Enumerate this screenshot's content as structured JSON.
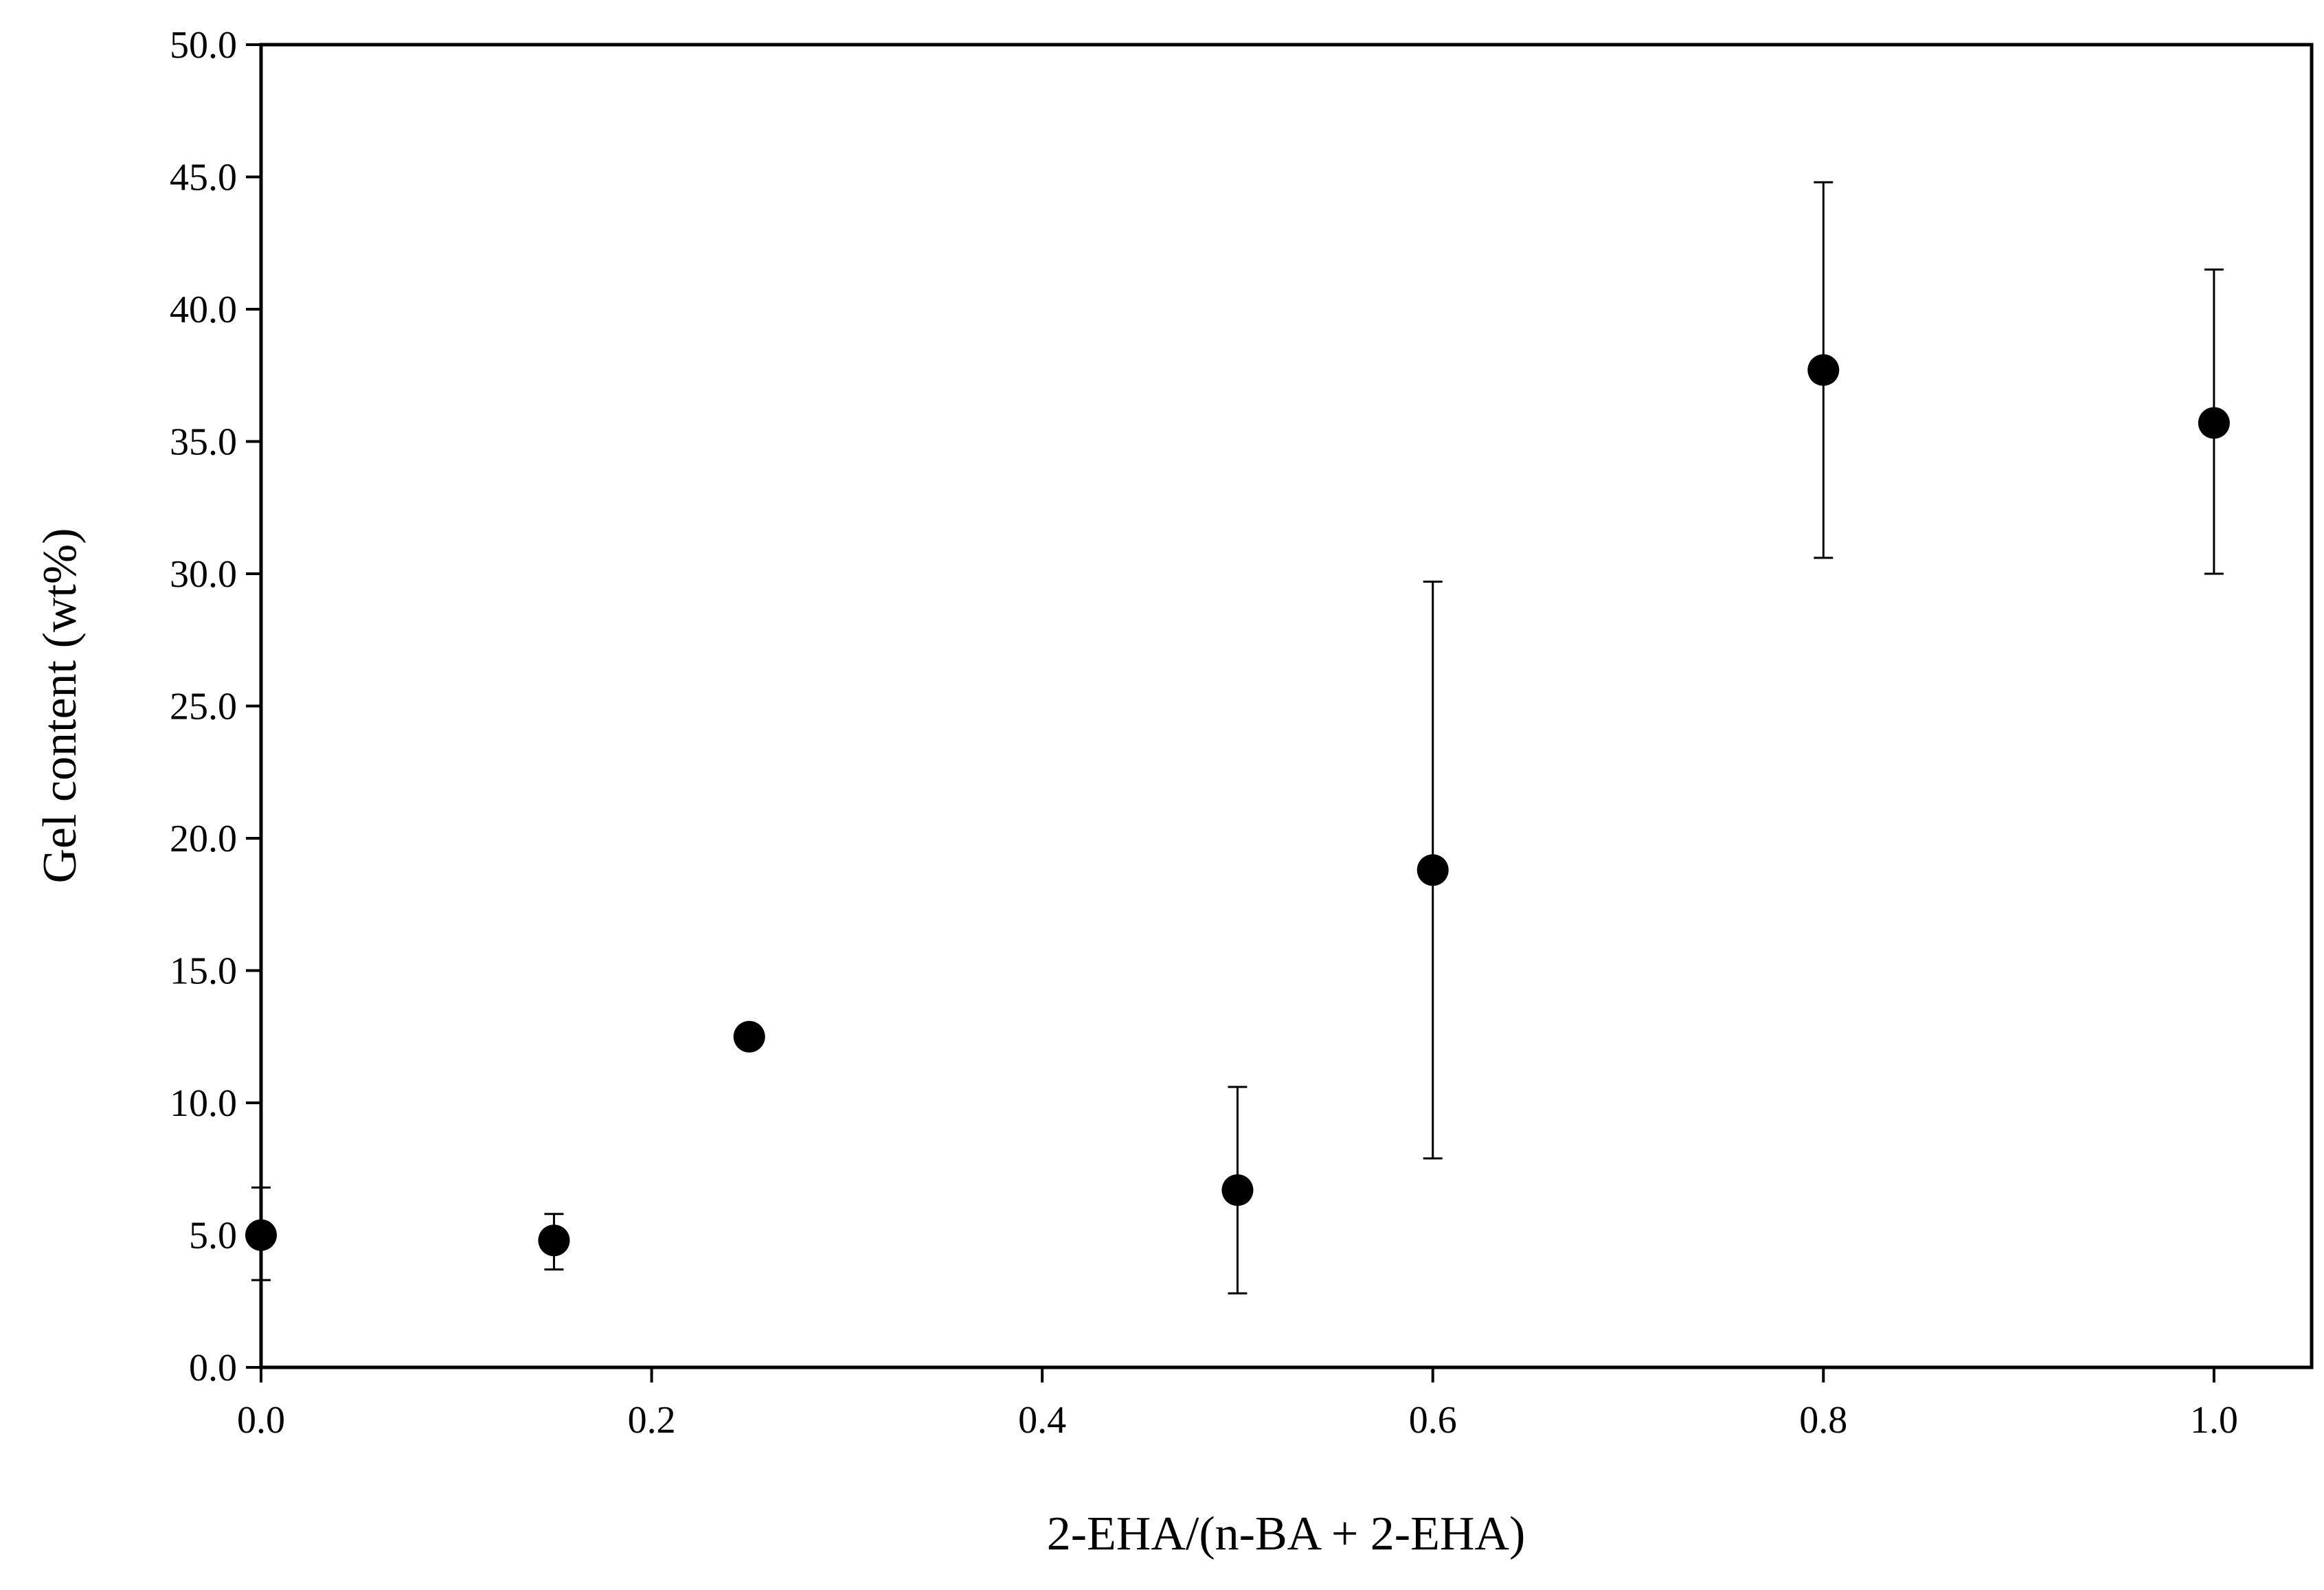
{
  "chart_data": {
    "type": "scatter",
    "title": "",
    "xlabel": "2-EHA/(n-BA + 2-EHA)",
    "ylabel": "Gel content (wt%)",
    "xlim": [
      0.0,
      1.05
    ],
    "ylim": [
      0.0,
      50.0
    ],
    "x_ticks": [
      "0.0",
      "0.2",
      "0.4",
      "0.6",
      "0.8",
      "1.0"
    ],
    "x_tick_values": [
      0.0,
      0.2,
      0.4,
      0.6,
      0.8,
      1.0
    ],
    "y_ticks": [
      "0.0",
      "5.0",
      "10.0",
      "15.0",
      "20.0",
      "25.0",
      "30.0",
      "35.0",
      "40.0",
      "45.0",
      "50.0"
    ],
    "y_tick_values": [
      0,
      5,
      10,
      15,
      20,
      25,
      30,
      35,
      40,
      45,
      50
    ],
    "grid": false,
    "marker_color": "#000000",
    "series": [
      {
        "points": [
          {
            "x": 0.0,
            "y": 5.0,
            "err_low": 3.3,
            "err_high": 6.8
          },
          {
            "x": 0.15,
            "y": 4.8,
            "err_low": 3.7,
            "err_high": 5.8
          },
          {
            "x": 0.25,
            "y": 12.5,
            "err_low": 12.5,
            "err_high": 12.5
          },
          {
            "x": 0.5,
            "y": 6.7,
            "err_low": 2.8,
            "err_high": 10.6
          },
          {
            "x": 0.6,
            "y": 18.8,
            "err_low": 7.9,
            "err_high": 29.7
          },
          {
            "x": 0.8,
            "y": 37.7,
            "err_low": 30.6,
            "err_high": 44.8
          },
          {
            "x": 1.0,
            "y": 35.7,
            "err_low": 30.0,
            "err_high": 41.5
          }
        ]
      }
    ]
  }
}
